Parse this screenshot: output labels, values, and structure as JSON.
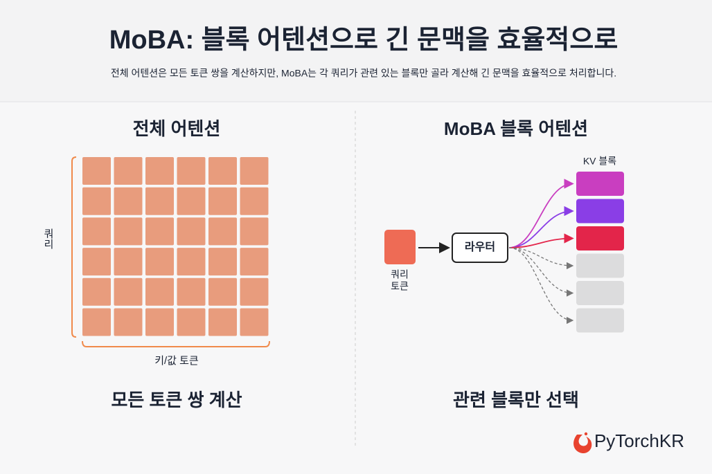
{
  "header": {
    "title": "MoBA: 블록 어텐션으로 긴 문맥을 효율적으로",
    "subtitle": "전체 어텐션은 모든 토큰 쌍을 계산하지만, MoBA는 각 쿼리가 관련 있는 블록만 골라 계산해 긴 문맥을 효율적으로 처리합니다."
  },
  "left": {
    "heading": "전체 어텐션",
    "y_label": "쿼리",
    "x_label": "키/값 토큰",
    "caption": "모든 토큰 쌍 계산"
  },
  "right": {
    "heading": "MoBA 블록 어텐션",
    "kv_label": "KV 블록",
    "query_label": [
      "쿼리",
      "토큰"
    ],
    "router": "라우터",
    "caption": "관련 블록만 선택"
  },
  "logo": "PyTorchKR"
}
